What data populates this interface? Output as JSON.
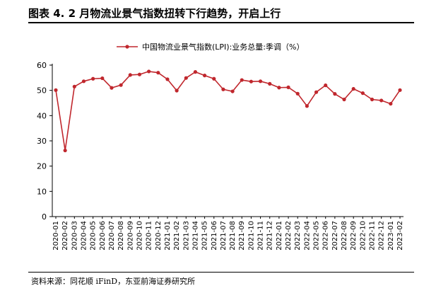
{
  "figure": {
    "title": "图表 4.  2 月物流业景气指数扭转下行趋势，开启上行",
    "source": "资料来源：同花顺 iFinD，东亚前海证券研究所"
  },
  "colors": {
    "series": "#c0272d",
    "axis": "#000000"
  },
  "chart_data": {
    "type": "line",
    "title": "",
    "xlabel": "",
    "ylabel": "",
    "ylim": [
      0,
      60
    ],
    "yticks": [
      0,
      10,
      20,
      30,
      40,
      50,
      60
    ],
    "grid": false,
    "legend_position": "top-center",
    "x": [
      "2020-01",
      "2020-02",
      "2020-03",
      "2020-04",
      "2020-05",
      "2020-06",
      "2020-07",
      "2020-08",
      "2020-09",
      "2020-10",
      "2020-11",
      "2020-12",
      "2021-01",
      "2021-02",
      "2021-03",
      "2021-04",
      "2021-05",
      "2021-06",
      "2021-07",
      "2021-08",
      "2021-09",
      "2021-10",
      "2021-11",
      "2021-12",
      "2022-01",
      "2022-02",
      "2022-03",
      "2022-04",
      "2022-05",
      "2022-06",
      "2022-07",
      "2022-08",
      "2022-09",
      "2022-10",
      "2022-11",
      "2022-12",
      "2023-01",
      "2023-02"
    ],
    "series": [
      {
        "name": "中国物流业景气指数(LPI):业务总量:季调（%）",
        "values": [
          50.1,
          26.2,
          51.5,
          53.6,
          54.6,
          54.8,
          51.0,
          52.1,
          56.1,
          56.3,
          57.5,
          57.0,
          54.4,
          49.9,
          54.9,
          57.3,
          55.9,
          54.6,
          50.4,
          49.6,
          54.1,
          53.5,
          53.6,
          52.6,
          51.1,
          51.2,
          48.7,
          43.8,
          49.3,
          52.0,
          48.6,
          46.4,
          50.6,
          48.9,
          46.4,
          46.0,
          44.7,
          50.1
        ]
      }
    ]
  }
}
